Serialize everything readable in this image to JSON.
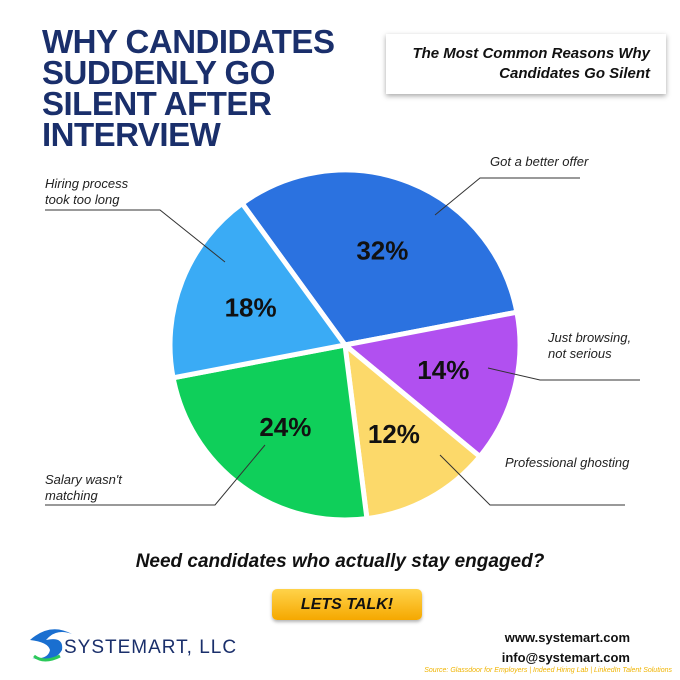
{
  "chart_data": {
    "type": "pie",
    "title": "WHY CANDIDATES SUDDENLY GO SILENT AFTER INTERVIEW",
    "subtitle": "The Most Common Reasons Why Candidates Go Silent",
    "categories": [
      "Got a better offer",
      "Just browsing, not serious",
      "Professional ghosting",
      "Salary wasn't matching",
      "Hiring process took too long"
    ],
    "values": [
      32,
      14,
      12,
      24,
      18
    ],
    "value_labels": [
      "32%",
      "14%",
      "12%",
      "24%",
      "18%"
    ],
    "colors": [
      "#2b72e0",
      "#b150f0",
      "#fcd96a",
      "#0fcf5a",
      "#3aabf5"
    ]
  },
  "cta": {
    "question": "Need candidates who actually stay engaged?",
    "button": "LETS TALK!"
  },
  "footer": {
    "company": "SYSTEMART, LLC",
    "website": "www.systemart.com",
    "email": "info@systemart.com",
    "source": "Source: Glassdoor for Employers | Indeed Hiring Lab | LinkedIn Talent Solutions"
  }
}
